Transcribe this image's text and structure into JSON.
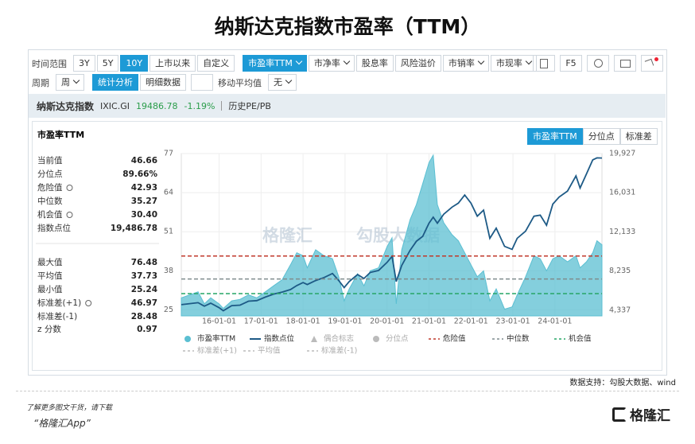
{
  "title": "纳斯达克指数市盈率（TTM）",
  "toolbar": {
    "range_label": "时间范围",
    "ranges": [
      "3Y",
      "5Y",
      "10Y",
      "上市以来",
      "自定义"
    ],
    "active_range": 2,
    "metrics": [
      {
        "label": "市盈率TTM",
        "dropdown": true
      },
      {
        "label": "市净率",
        "dropdown": true
      },
      {
        "label": "股息率",
        "dropdown": false
      },
      {
        "label": "风险溢价",
        "dropdown": false
      },
      {
        "label": "市销率",
        "dropdown": true
      },
      {
        "label": "市现率",
        "dropdown": true
      }
    ],
    "active_metric": 0,
    "f5": "F5",
    "period_label": "周期",
    "period": "周",
    "tabs": [
      "统计分析",
      "明细数据"
    ],
    "active_tab": 0,
    "ma_label": "移动平均值",
    "ma": "无"
  },
  "header": {
    "name": "纳斯达克指数",
    "code": "IXIC.GI",
    "price": "19486.78",
    "change": "-1.19%",
    "link": "历史PE/PB"
  },
  "panel": {
    "title": "市盈率TTM",
    "tabs": [
      "市盈率TTM",
      "分位点",
      "标准差"
    ],
    "active_tab": 0,
    "current": {
      "label": "当前值",
      "value": "46.66"
    },
    "percentile": {
      "label": "分位点",
      "value": "89.66%"
    },
    "index_level": {
      "label": "指数点位",
      "value": "19,486.78"
    },
    "max": {
      "label": "最大值",
      "value": "76.48"
    },
    "min": {
      "label": "最小值",
      "value": "25.24"
    },
    "z": {
      "label": "z 分数",
      "value": "0.97"
    }
  },
  "chart_data": {
    "type": "area-line",
    "x": [
      2015.1,
      2015.3,
      2015.5,
      2015.65,
      2015.8,
      2016.0,
      2016.1,
      2016.3,
      2016.5,
      2016.7,
      2016.9,
      2017.1,
      2017.3,
      2017.5,
      2017.7,
      2017.85,
      2018.0,
      2018.1,
      2018.3,
      2018.5,
      2018.7,
      2018.85,
      2018.98,
      2019.1,
      2019.3,
      2019.45,
      2019.6,
      2019.8,
      2020.0,
      2020.12,
      2020.22,
      2020.35,
      2020.55,
      2020.7,
      2020.85,
      2021.0,
      2021.1,
      2021.2,
      2021.35,
      2021.55,
      2021.7,
      2021.85,
      2022.0,
      2022.15,
      2022.3,
      2022.45,
      2022.6,
      2022.8,
      2022.98,
      2023.1,
      2023.3,
      2023.5,
      2023.65,
      2023.8,
      2023.95,
      2024.1,
      2024.3,
      2024.5,
      2024.6,
      2024.75,
      2024.9,
      2025.0,
      2025.12
    ],
    "series": [
      {
        "name": "市盈率TTM",
        "color": "#5bbfd2",
        "symbol": "circle",
        "values": [
          29,
          30,
          31,
          27,
          29,
          27,
          25.5,
          28,
          28.5,
          30,
          29,
          31,
          33,
          35,
          40,
          44,
          43,
          39,
          45,
          43,
          42,
          36,
          28,
          32,
          37,
          33,
          38,
          39,
          46,
          49,
          27,
          45,
          55,
          60,
          67,
          74,
          76.48,
          60,
          54,
          50,
          48,
          44,
          40,
          36,
          38,
          28,
          32,
          25.24,
          26,
          30,
          36,
          43,
          42,
          38,
          42,
          43,
          41,
          43,
          39,
          41,
          44,
          48,
          46.66
        ]
      },
      {
        "name": "指数点位",
        "color": "#1d5a86",
        "symbol": "line",
        "axis": "y2",
        "values": [
          4900,
          5000,
          5100,
          4750,
          5050,
          4600,
          4300,
          4800,
          4850,
          5250,
          5300,
          5650,
          5950,
          6150,
          6400,
          6800,
          7100,
          6900,
          7300,
          7600,
          8000,
          7300,
          6600,
          7200,
          7900,
          7500,
          8100,
          8300,
          9100,
          9700,
          7200,
          8800,
          10300,
          11200,
          11700,
          13000,
          13600,
          13000,
          13900,
          14600,
          15000,
          15800,
          15000,
          13700,
          14300,
          11500,
          12500,
          10700,
          10400,
          11500,
          12200,
          13700,
          13800,
          12800,
          14900,
          15600,
          16200,
          17700,
          16500,
          17900,
          19300,
          19500,
          19486.78
        ]
      }
    ],
    "markers": [
      {
        "name": "偶合标志",
        "symbol": "triangle",
        "enabled": false
      },
      {
        "name": "分位点",
        "symbol": "circle",
        "enabled": false
      }
    ],
    "reference_lines": [
      {
        "name": "危险值",
        "value": 42.93,
        "color": "#c0392b",
        "visible": true
      },
      {
        "name": "中位数",
        "value": 35.27,
        "color": "#7f8c8d",
        "visible": true
      },
      {
        "name": "机会值",
        "value": 30.4,
        "value_label": "30.40",
        "color": "#27a567",
        "visible": true
      },
      {
        "name": "标准差(+1)",
        "value": 46.97,
        "color": "#bbbbbb",
        "visible": false
      },
      {
        "name": "平均值",
        "value": 37.73,
        "color": "#bbbbbb",
        "visible": false
      },
      {
        "name": "标准差(-1)",
        "value": 28.48,
        "color": "#bbbbbb",
        "visible": false
      }
    ],
    "xlim": [
      2015.1,
      2025.12
    ],
    "xticks": [
      {
        "value": 2016,
        "label": "16-01-01"
      },
      {
        "value": 2017,
        "label": "17-01-01"
      },
      {
        "value": 2018,
        "label": "18-01-01"
      },
      {
        "value": 2019,
        "label": "19-01-01"
      },
      {
        "value": 2020,
        "label": "20-01-01"
      },
      {
        "value": 2021,
        "label": "21-01-01"
      },
      {
        "value": 2022,
        "label": "22-01-01"
      },
      {
        "value": 2023,
        "label": "23-01-01"
      },
      {
        "value": 2024,
        "label": "24-01-01"
      }
    ],
    "ylim": [
      23,
      77
    ],
    "yticks": [
      25,
      38,
      51,
      64,
      77
    ],
    "y2lim": [
      3783,
      19927
    ],
    "y2ticks": [
      {
        "value": 4337,
        "label": "4,337"
      },
      {
        "value": 8235,
        "label": "8,235"
      },
      {
        "value": 12133,
        "label": "12,133"
      },
      {
        "value": 16031,
        "label": "16,031"
      },
      {
        "value": 19927,
        "label": "19,927"
      }
    ],
    "grid": true,
    "watermarks": [
      "格隆汇",
      "勾股大数据"
    ]
  },
  "source": "数据支持：勾股大数据、wind",
  "footer": {
    "line1": "了解更多图文干货，请下载",
    "line2": "“格隆汇App”",
    "logo": "格隆汇"
  }
}
